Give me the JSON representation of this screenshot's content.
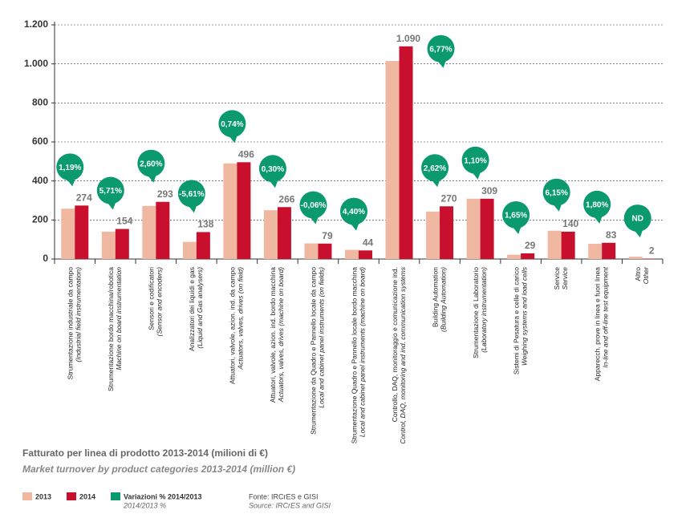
{
  "chart_data": {
    "type": "bar",
    "title": "Fatturato per linea di prodotto 2013-2014 (milioni di €)",
    "subtitle": "Market turnover by product categories 2013-2014 (million €)",
    "categories": [
      "Strumentazione industriale da campo",
      "Strumentazione bordo macchina/robotica",
      "Sensori e codificatori",
      "Analizzatori dei liquidi e gas",
      "Attuatori, valvole, azion. ind. da campo",
      "Attuatori, valvole, azion. ind. bordo macchina",
      "Strumentazione da Quadro e Pannello locale da campo",
      "Strumentazione Quadro e Pannello locale bordo macchina",
      "Controllo, DAQ, monitoraggio e comunicazione ind.",
      "Building Automation",
      "Strumentazione di Laboratorio",
      "Sistemi di Pesatura e celle di carico",
      "Service",
      "Apparecch. prove in linea e fuori linea",
      "Altro"
    ],
    "categories_en": [
      "(Industrial field instrumentation)",
      "Machine on board instrumentation",
      "(Sensor and encoders)",
      "(Liquid and Gas analysers)",
      "Actuators, valves, drives (on field)",
      "Actuators, valves, drives (machine on board)",
      "Local and cabinet panel instruments (on fields)",
      "Local and cabinet panel instruments (machine on board)",
      "Control, DAQ, monitoring and ind. communication systems",
      "(Building Automation)",
      "(Laboratory instrumentation)",
      "Weighing systems and load cells",
      "Service",
      "In-line and off-line test equipment",
      "Other"
    ],
    "series": [
      {
        "name": "2013",
        "color": "#f0b8a0",
        "values": [
          258,
          140,
          272,
          88,
          490,
          250,
          80,
          47,
          1015,
          243,
          309,
          22,
          145,
          78,
          12
        ]
      },
      {
        "name": "2014",
        "color": "#c8102e",
        "values": [
          274,
          154,
          293,
          138,
          496,
          266,
          79,
          44,
          1090,
          270,
          309,
          29,
          140,
          83,
          2
        ],
        "value_labels": [
          "274",
          "154",
          "293",
          "138",
          "496",
          "266",
          "79",
          "44",
          "1.090",
          "270",
          "309",
          "29",
          "140",
          "83",
          "2"
        ]
      }
    ],
    "variations": {
      "name": "Variazioni % 2014/2013",
      "subname": "2014/2013 %",
      "color": "#0a9a6e",
      "labels": [
        "1,19%",
        "5,71%",
        "2,60%",
        "-5,61%",
        "0,74%",
        "0,30%",
        "-0,06%",
        "4,40%",
        "6,77%",
        "2,62%",
        "1,10%",
        "1,65%",
        "6,15%",
        "1,80%",
        "ND"
      ]
    },
    "ylim": [
      0,
      1200
    ],
    "yticks": [
      0,
      200,
      400,
      600,
      800,
      {
        "value": 1000,
        "label": "1.000"
      },
      {
        "value": 1200,
        "label": "1.200"
      }
    ],
    "grid": true,
    "source": "Fonte: IRCrES e GISI",
    "source_en": "Source: IRCrES and GISI"
  }
}
